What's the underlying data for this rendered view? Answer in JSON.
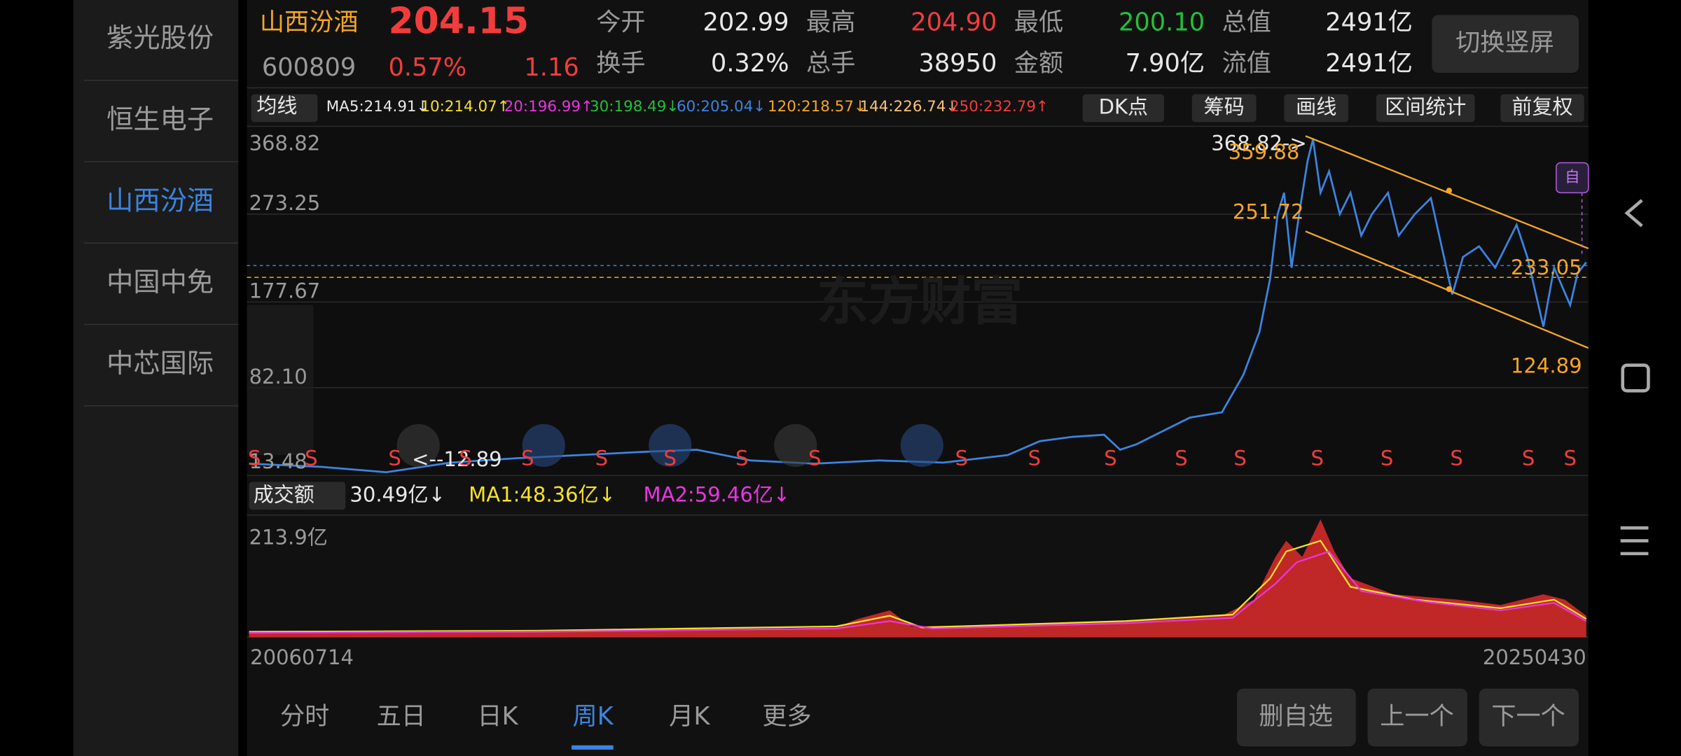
{
  "sidebar": {
    "items": [
      "紫光股份",
      "恒生电子",
      "山西汾酒",
      "中国中免",
      "中芯国际"
    ],
    "selected": 2
  },
  "quote": {
    "name": "山西汾酒",
    "price": "204.15",
    "code": "600809",
    "change_pct": "0.57%",
    "change": "1.16",
    "stats": [
      {
        "label": "今开",
        "value": "202.99"
      },
      {
        "label": "最高",
        "value": "204.90"
      },
      {
        "label": "最低",
        "value": "200.10"
      },
      {
        "label": "总值",
        "value": "2491亿"
      },
      {
        "label": "换手",
        "value": "0.32%"
      },
      {
        "label": "总手",
        "value": "38950"
      },
      {
        "label": "金额",
        "value": "7.90亿"
      },
      {
        "label": "流值",
        "value": "2491亿"
      }
    ],
    "orientation_button": "切换竖屏"
  },
  "indicator_bar": {
    "selector": "均线",
    "ma": [
      "MA5:214.91↓",
      "10:214.07↑",
      "20:196.99↑",
      "30:198.49↓",
      "60:205.04↓",
      "120:218.57↓",
      "144:226.74↓",
      "250:232.79↑"
    ],
    "buttons": [
      "DK点",
      "筹码",
      "画线",
      "区间统计",
      "前复权"
    ]
  },
  "price_chart": {
    "axis_labels": [
      "368.82",
      "273.25",
      "177.67",
      "82.10",
      "13.48"
    ],
    "annotations": {
      "high": "368.82->",
      "low": "<--12.89",
      "channel": [
        "359.88",
        "251.72",
        "233.05",
        "124.89"
      ]
    },
    "tag": "自",
    "signal": "S",
    "watermark": "东方财富"
  },
  "volume_chart": {
    "selector": "成交额",
    "values": [
      "30.49亿↓",
      "MA1:48.36亿↓",
      "MA2:59.46亿↓"
    ],
    "max_label": "213.9亿",
    "start_date": "20060714",
    "end_date": "20250430"
  },
  "tabs": {
    "items": [
      "分时",
      "五日",
      "日K",
      "周K",
      "月K",
      "更多"
    ],
    "selected": 3
  },
  "actions": [
    "删自选",
    "上一个",
    "下一个"
  ]
}
